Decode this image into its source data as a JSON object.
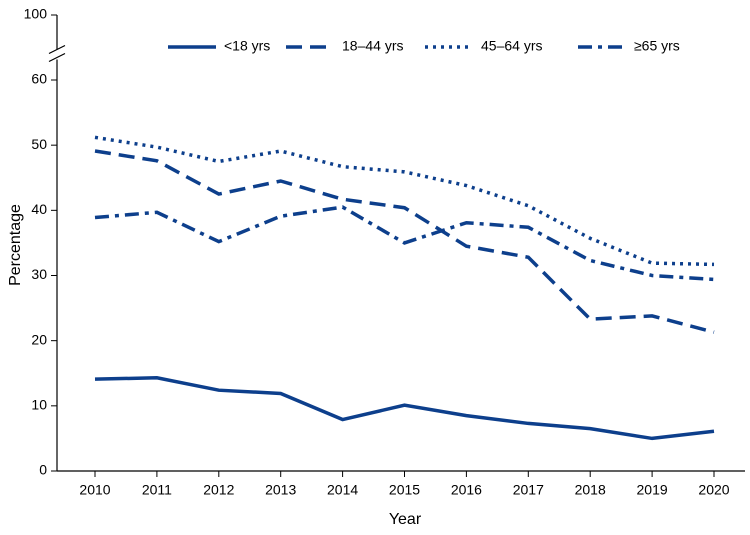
{
  "chart_data": {
    "type": "line",
    "x_label": "Year",
    "y_label": "Percentage",
    "categories": [
      "2010",
      "2011",
      "2012",
      "2013",
      "2014",
      "2015",
      "2016",
      "2017",
      "2018",
      "2019",
      "2020"
    ],
    "ylim": [
      0,
      100
    ],
    "yticks": [
      0,
      10,
      20,
      30,
      40,
      50,
      60,
      100
    ],
    "axis_break": true,
    "legend": "top",
    "grid": false,
    "series": [
      {
        "name": "<18 yrs",
        "color": "#0d3f8c",
        "dash": "solid",
        "values": [
          14.1,
          14.3,
          12.4,
          11.9,
          7.9,
          10.1,
          8.5,
          7.3,
          6.5,
          5.0,
          6.1
        ]
      },
      {
        "name": "18–44 yrs",
        "color": "#0d3f8c",
        "dash": "dashed",
        "values": [
          49.1,
          47.6,
          42.5,
          44.5,
          41.7,
          40.4,
          34.5,
          32.8,
          23.3,
          23.8,
          21.3
        ]
      },
      {
        "name": "45–64 yrs",
        "color": "#0d3f8c",
        "dash": "dotted",
        "values": [
          51.2,
          49.7,
          47.5,
          49.1,
          46.7,
          45.9,
          43.8,
          40.7,
          35.7,
          31.9,
          31.7
        ]
      },
      {
        "name": "≥65 yrs",
        "color": "#0d3f8c",
        "dash": "dashdot",
        "values": [
          38.9,
          39.7,
          35.2,
          39.1,
          40.5,
          35.0,
          38.1,
          37.4,
          32.3,
          30.0,
          29.4
        ]
      }
    ]
  }
}
